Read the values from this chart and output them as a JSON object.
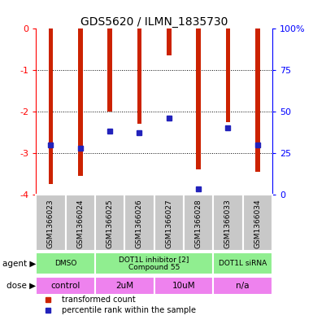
{
  "title": "GDS5620 / ILMN_1835730",
  "samples": [
    "GSM1366023",
    "GSM1366024",
    "GSM1366025",
    "GSM1366026",
    "GSM1366027",
    "GSM1366028",
    "GSM1366033",
    "GSM1366034"
  ],
  "bar_values": [
    -3.75,
    -3.55,
    -2.0,
    -2.3,
    -0.65,
    -3.4,
    -2.25,
    -3.45
  ],
  "percentile_values": [
    30,
    28,
    38,
    37,
    46,
    3,
    40,
    30
  ],
  "ylim_left": [
    -4.0,
    0.0
  ],
  "ylim_right": [
    0,
    100
  ],
  "yticks_left": [
    0,
    -1,
    -2,
    -3,
    -4
  ],
  "yticks_right": [
    0,
    25,
    50,
    75,
    100
  ],
  "ytick_labels_right": [
    "0",
    "25",
    "50",
    "75",
    "100%"
  ],
  "agent_groups": [
    {
      "label": "DMSO",
      "start": 0,
      "end": 2,
      "color": "#90EE90"
    },
    {
      "label": "DOT1L inhibitor [2]\nCompound 55",
      "start": 2,
      "end": 6,
      "color": "#90EE90"
    },
    {
      "label": "DOT1L siRNA",
      "start": 6,
      "end": 8,
      "color": "#90EE90"
    }
  ],
  "dose_groups": [
    {
      "label": "control",
      "start": 0,
      "end": 2,
      "color": "#EE82EE"
    },
    {
      "label": "2uM",
      "start": 2,
      "end": 4,
      "color": "#EE82EE"
    },
    {
      "label": "10uM",
      "start": 4,
      "end": 6,
      "color": "#EE82EE"
    },
    {
      "label": "n/a",
      "start": 6,
      "end": 8,
      "color": "#EE82EE"
    }
  ],
  "bar_color": "#CC2200",
  "blue_color": "#2222BB",
  "bar_width": 0.15,
  "legend_items": [
    {
      "label": "transformed count",
      "color": "#CC2200"
    },
    {
      "label": "percentile rank within the sample",
      "color": "#2222BB"
    }
  ],
  "grid_lines": [
    -1,
    -2,
    -3
  ],
  "grey_box_color": "#C8C8C8",
  "agent_arrow": "▶",
  "dose_arrow": "▶"
}
